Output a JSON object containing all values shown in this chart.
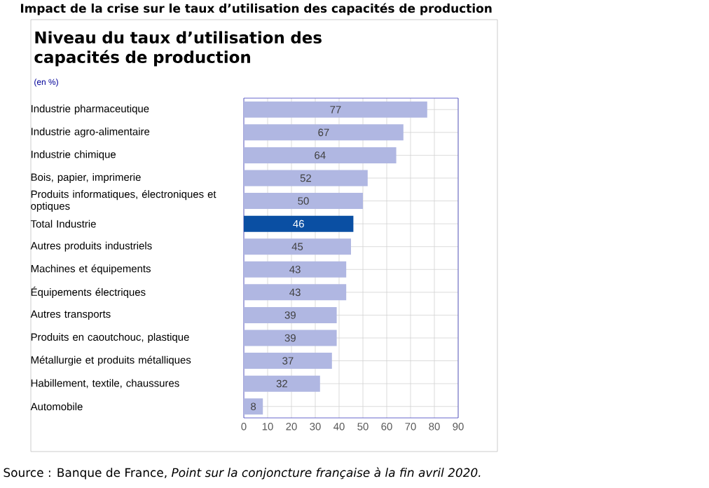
{
  "chart_data": {
    "type": "bar",
    "orientation": "horizontal",
    "title": "Impact de la crise sur le taux d’utilisation des capacités de production",
    "subtitle": "Niveau du taux d’utilisation des capacités de production",
    "annotations": [
      "(en %)",
      "Source : Banque de France, *Point sur la conjoncture française à la fin avril 2020.*"
    ],
    "categories": [
      "Industrie pharmaceutique",
      "Industrie agro-alimentaire",
      "Industrie chimique",
      "Bois, papier, imprimerie",
      "Produits informatiques, électroniques et optiques",
      "Total Industrie",
      "Autres produits industriels",
      "Machines et équipements",
      "Équipements électriques",
      "Autres transports",
      "Produits en caoutchouc, plastique",
      "Métallurgie et produits métalliques",
      "Habillement, textile, chaussures",
      "Automobile"
    ],
    "values": [
      77,
      67,
      64,
      52,
      50,
      46,
      45,
      43,
      43,
      39,
      39,
      37,
      32,
      8
    ],
    "colors": [
      "#b0b7e2",
      "#b0b7e2",
      "#b0b7e2",
      "#b0b7e2",
      "#b0b7e2",
      "#0a4fa3",
      "#b0b7e2",
      "#b0b7e2",
      "#b0b7e2",
      "#b0b7e2",
      "#b0b7e2",
      "#b0b7e2",
      "#b0b7e2",
      "#b0b7e2"
    ],
    "data_labels": true,
    "xlim": [
      0,
      90
    ],
    "xticks": [
      0,
      10,
      20,
      30,
      40,
      50,
      60,
      70,
      80,
      90
    ],
    "grid": true
  }
}
